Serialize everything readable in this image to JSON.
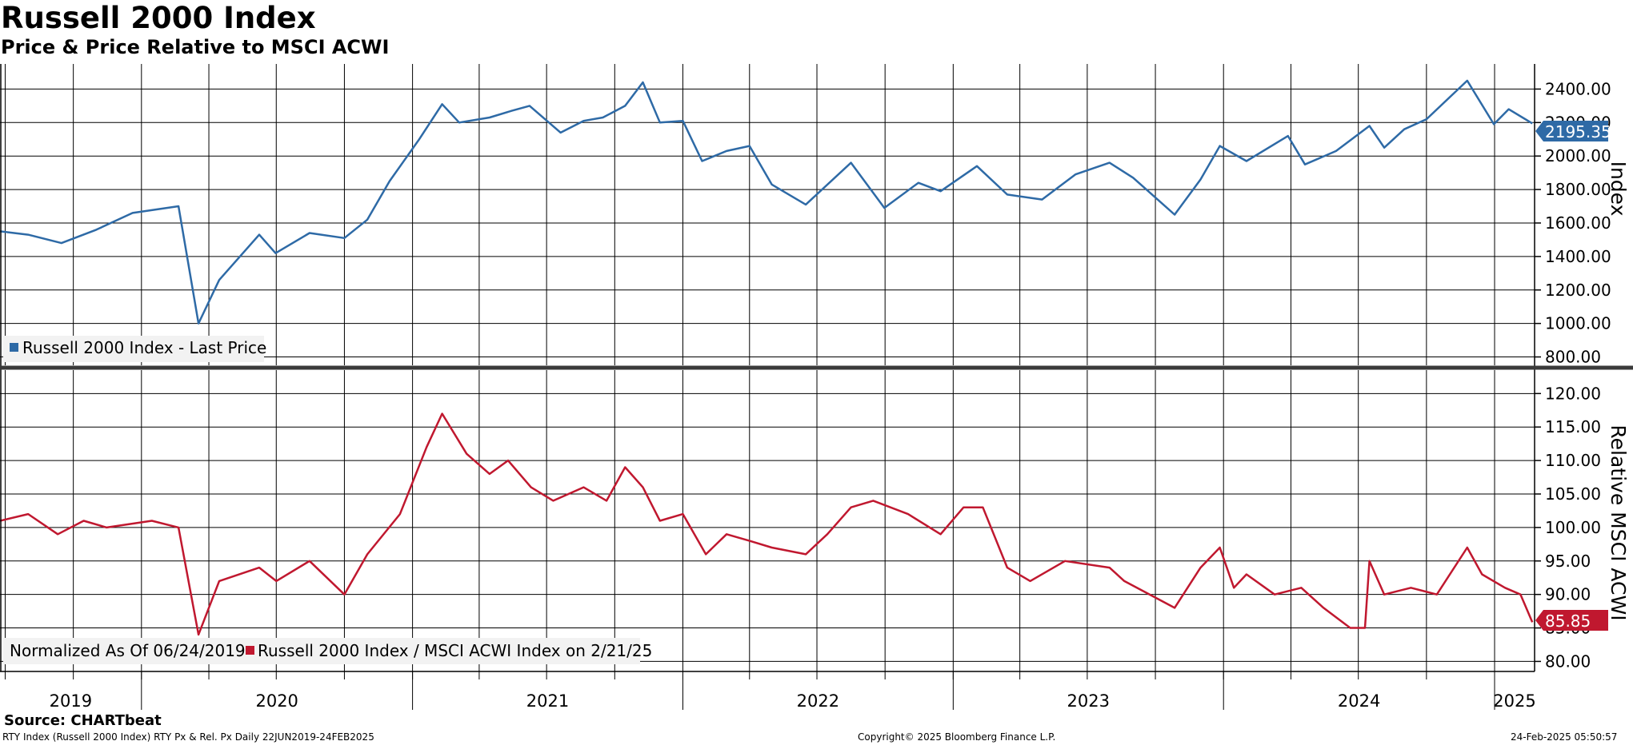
{
  "header": {
    "title": "Russell 2000 Index",
    "subtitle": "Price & Price Relative to MSCI ACWI"
  },
  "footer": {
    "source": "Source: CHARTbeat",
    "left_note": "RTY Index (Russell 2000 Index) RTY Px & Rel. Px  Daily 22JUN2019-24FEB2025",
    "center_note": "Copyright© 2025 Bloomberg Finance L.P.",
    "right_note": "24-Feb-2025 05:50:57"
  },
  "colors": {
    "price": "#2e6aa6",
    "relative": "#c0182f",
    "grid": "#000000"
  },
  "chart_data": [
    {
      "type": "line",
      "title": "Russell 2000 Index",
      "ylabel": "Index",
      "ylim": [
        750,
        2550
      ],
      "y_ticks": [
        "2400.00",
        "2200.00",
        "2000.00",
        "1800.00",
        "1600.00",
        "1400.00",
        "1200.00",
        "1000.00",
        "800.00"
      ],
      "grid": true,
      "legend_position": "bottom-left",
      "last_value_label": "2195.35",
      "series": [
        {
          "name": "Russell 2000 Index - Last Price",
          "x": [
            "2019-06-24",
            "2019-08-01",
            "2019-09-15",
            "2019-11-01",
            "2019-12-20",
            "2020-02-20",
            "2020-03-18",
            "2020-04-15",
            "2020-06-08",
            "2020-06-30",
            "2020-08-15",
            "2020-10-01",
            "2020-11-01",
            "2020-12-01",
            "2021-01-10",
            "2021-02-10",
            "2021-03-05",
            "2021-04-15",
            "2021-05-15",
            "2021-06-08",
            "2021-07-20",
            "2021-08-20",
            "2021-09-15",
            "2021-10-15",
            "2021-11-08",
            "2021-12-01",
            "2022-01-01",
            "2022-01-27",
            "2022-03-01",
            "2022-04-01",
            "2022-05-01",
            "2022-06-16",
            "2022-08-16",
            "2022-09-30",
            "2022-11-15",
            "2022-12-15",
            "2023-02-02",
            "2023-03-15",
            "2023-05-01",
            "2023-06-15",
            "2023-07-31",
            "2023-09-01",
            "2023-10-27",
            "2023-12-01",
            "2023-12-27",
            "2024-02-01",
            "2024-03-28",
            "2024-04-20",
            "2024-06-01",
            "2024-07-16",
            "2024-08-05",
            "2024-09-01",
            "2024-10-01",
            "2024-11-25",
            "2024-12-31",
            "2025-01-20",
            "2025-02-21"
          ],
          "values": [
            1550,
            1530,
            1480,
            1560,
            1660,
            1700,
            1000,
            1260,
            1530,
            1420,
            1540,
            1510,
            1620,
            1850,
            2100,
            2310,
            2200,
            2230,
            2270,
            2300,
            2140,
            2210,
            2230,
            2300,
            2440,
            2200,
            2210,
            1970,
            2030,
            2060,
            1830,
            1710,
            1960,
            1690,
            1840,
            1790,
            1940,
            1770,
            1740,
            1890,
            1960,
            1870,
            1650,
            1860,
            2060,
            1970,
            2120,
            1950,
            2030,
            2180,
            2050,
            2160,
            2220,
            2450,
            2190,
            2280,
            2195
          ]
        }
      ]
    },
    {
      "type": "line",
      "title": "Relative MSCI ACWI",
      "ylabel": "Relative MSCI ACWI",
      "ylim": [
        78.5,
        123.5
      ],
      "y_ticks": [
        "120.00",
        "115.00",
        "110.00",
        "105.00",
        "100.00",
        "95.00",
        "90.00",
        "85.00",
        "80.00"
      ],
      "grid": true,
      "legend_position": "bottom-left",
      "last_value_label": "85.85",
      "legend_note": "Normalized As Of 06/24/2019",
      "series": [
        {
          "name": "Russell 2000 Index / MSCI ACWI Index on 2/21/25",
          "x": [
            "2019-06-24",
            "2019-08-01",
            "2019-09-10",
            "2019-10-15",
            "2019-11-15",
            "2020-01-15",
            "2020-02-20",
            "2020-03-18",
            "2020-04-15",
            "2020-06-08",
            "2020-07-01",
            "2020-08-15",
            "2020-10-01",
            "2020-11-01",
            "2020-12-15",
            "2021-01-20",
            "2021-02-10",
            "2021-03-15",
            "2021-04-15",
            "2021-05-10",
            "2021-06-10",
            "2021-07-10",
            "2021-08-20",
            "2021-09-20",
            "2021-10-15",
            "2021-11-08",
            "2021-12-01",
            "2022-01-01",
            "2022-02-01",
            "2022-03-01",
            "2022-04-01",
            "2022-05-01",
            "2022-06-16",
            "2022-07-15",
            "2022-08-16",
            "2022-09-15",
            "2022-11-01",
            "2022-12-15",
            "2023-01-15",
            "2023-02-10",
            "2023-03-15",
            "2023-04-15",
            "2023-06-01",
            "2023-07-31",
            "2023-08-20",
            "2023-10-27",
            "2023-12-01",
            "2023-12-27",
            "2024-01-15",
            "2024-02-01",
            "2024-03-10",
            "2024-04-15",
            "2024-05-15",
            "2024-06-20",
            "2024-07-10",
            "2024-07-16",
            "2024-08-05",
            "2024-09-10",
            "2024-10-15",
            "2024-11-25",
            "2024-12-15",
            "2025-01-15",
            "2025-02-05",
            "2025-02-21"
          ],
          "values": [
            101,
            102,
            99,
            101,
            100,
            101,
            100,
            84,
            92,
            94,
            92,
            95,
            90,
            96,
            102,
            112,
            117,
            111,
            108,
            110,
            106,
            104,
            106,
            104,
            109,
            106,
            101,
            102,
            96,
            99,
            98,
            97,
            96,
            99,
            103,
            104,
            102,
            99,
            103,
            103,
            94,
            92,
            95,
            94,
            92,
            88,
            94,
            97,
            91,
            93,
            90,
            91,
            88,
            85,
            85,
            95,
            90,
            91,
            90,
            97,
            93,
            91,
            90,
            85.85
          ]
        }
      ]
    }
  ],
  "x_axis": {
    "year_labels": [
      "2019",
      "2020",
      "2021",
      "2022",
      "2023",
      "2024",
      "2025"
    ]
  }
}
